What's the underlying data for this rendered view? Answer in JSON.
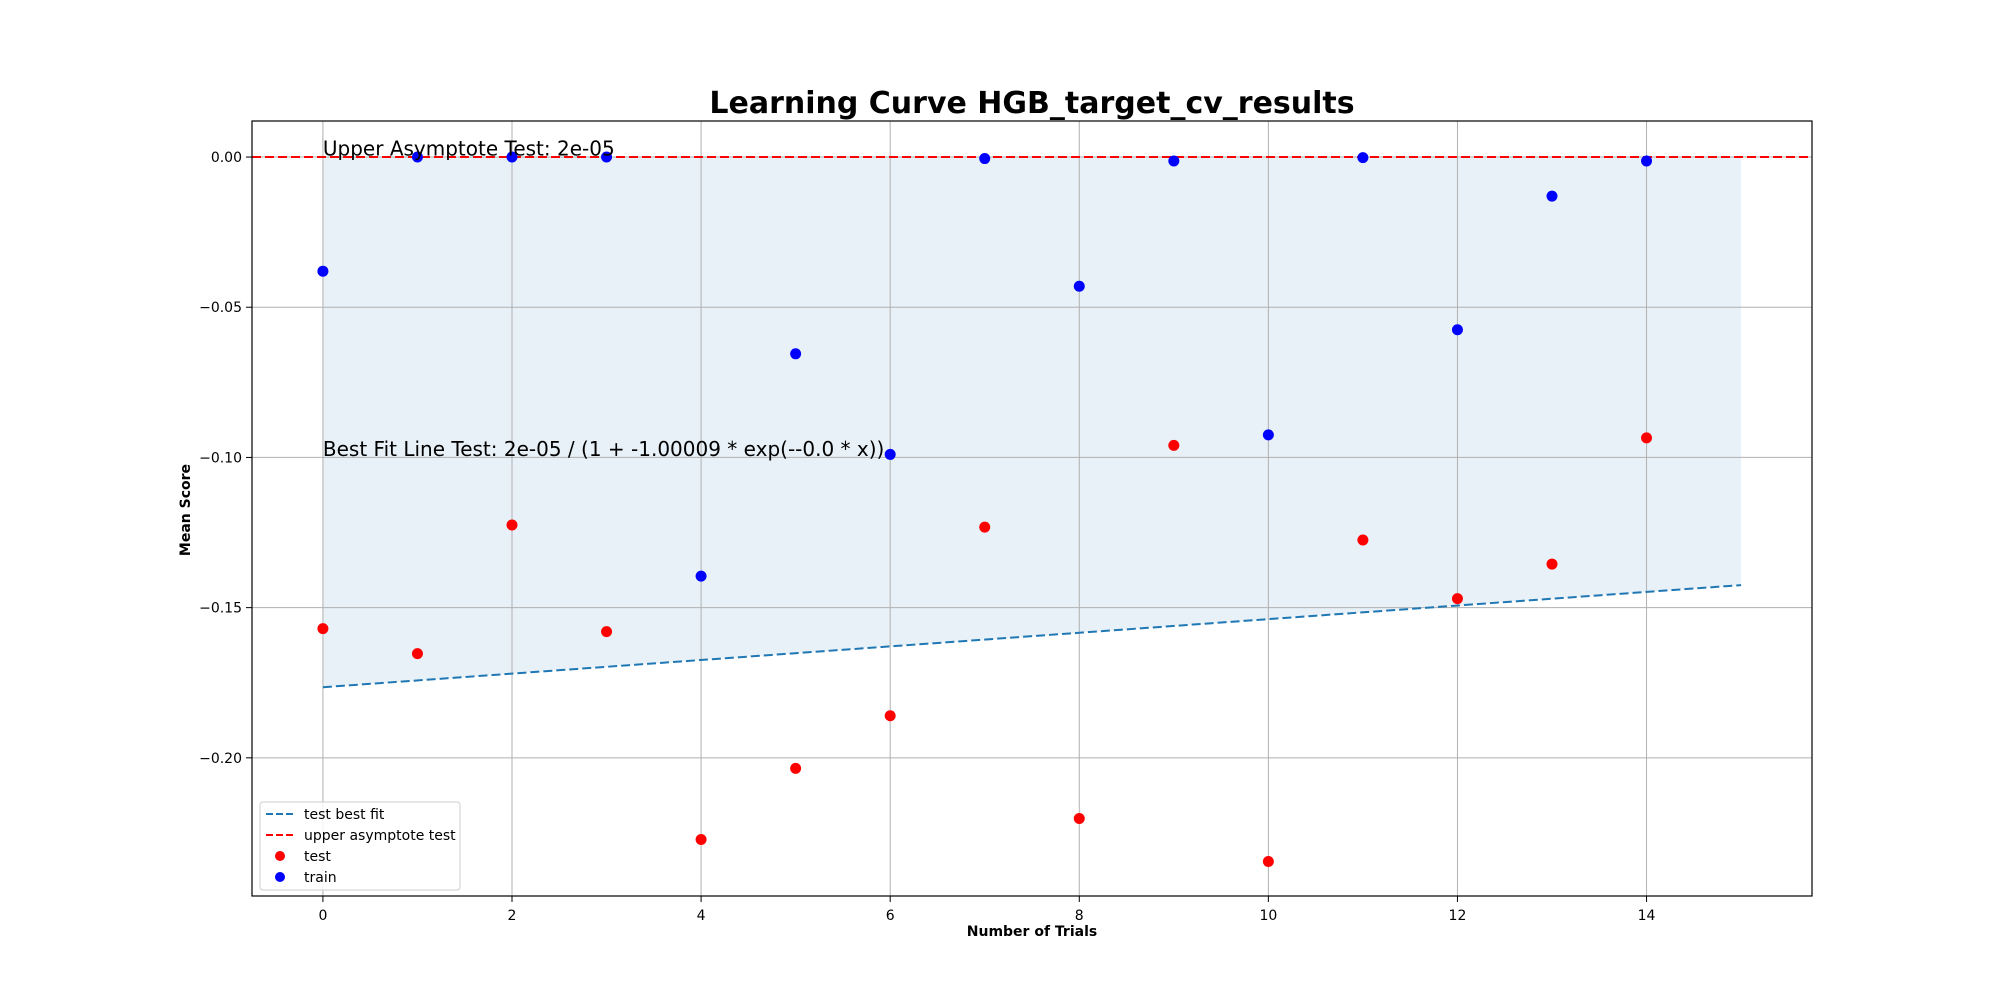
{
  "chart_data": {
    "type": "scatter",
    "title": "Learning Curve HGB_target_cv_results",
    "xlabel": "Number of Trials",
    "ylabel": "Mean Score",
    "xlim": [
      -0.75,
      15.75
    ],
    "ylim": [
      -0.246,
      0.012
    ],
    "xticks": [
      0,
      2,
      4,
      6,
      8,
      10,
      12,
      14
    ],
    "xtick_labels": [
      "0",
      "2",
      "4",
      "6",
      "8",
      "10",
      "12",
      "14"
    ],
    "yticks": [
      0.0,
      -0.05,
      -0.1,
      -0.15,
      -0.2
    ],
    "ytick_labels": [
      "0.00",
      "−0.05",
      "−0.10",
      "−0.15",
      "−0.20"
    ],
    "grid": true,
    "legend_position": "lower-left",
    "series": [
      {
        "name": "test",
        "kind": "scatter",
        "color": "#ff0000",
        "x": [
          0,
          1,
          2,
          3,
          4,
          5,
          6,
          7,
          8,
          9,
          10,
          11,
          12,
          13,
          14
        ],
        "y": [
          -0.157,
          -0.1653,
          -0.1225,
          -0.158,
          -0.2272,
          -0.2035,
          -0.186,
          -0.1232,
          -0.2202,
          -0.096,
          -0.2345,
          -0.1275,
          -0.147,
          -0.1355,
          -0.0935
        ]
      },
      {
        "name": "train",
        "kind": "scatter",
        "color": "#0000ff",
        "x": [
          0,
          1,
          2,
          3,
          4,
          5,
          6,
          7,
          8,
          9,
          10,
          11,
          12,
          13,
          14
        ],
        "y": [
          -0.038,
          0.0,
          0.0,
          0.0,
          -0.1395,
          -0.0655,
          -0.099,
          -0.0005,
          -0.043,
          -0.0013,
          -0.0925,
          -0.0002,
          -0.0575,
          -0.013,
          -0.0013
        ]
      },
      {
        "name": "test best fit",
        "kind": "line",
        "style": "dashed",
        "color": "#1f77b4",
        "x": [
          0,
          15
        ],
        "y": [
          -0.1765,
          -0.1425
        ]
      },
      {
        "name": "upper asymptote test",
        "kind": "hline",
        "style": "dashed",
        "color": "#ff0000",
        "y": 2e-05
      }
    ],
    "fill_between": {
      "color": "#1f77b4",
      "opacity": 0.1,
      "x": [
        0,
        15
      ],
      "lower": [
        -0.1765,
        -0.1425
      ],
      "upper": [
        2e-05,
        2e-05
      ]
    },
    "annotations": [
      {
        "text": "Upper Asymptote Test: 2e-05",
        "x": 0,
        "y": 0.0005
      },
      {
        "text": "Best Fit Line Test: 2e-05 / (1 + -1.00009 * exp(--0.0 * x))",
        "x": 0,
        "y": -0.0995
      }
    ],
    "legend_order": [
      "test best fit",
      "upper asymptote test",
      "test",
      "train"
    ]
  }
}
